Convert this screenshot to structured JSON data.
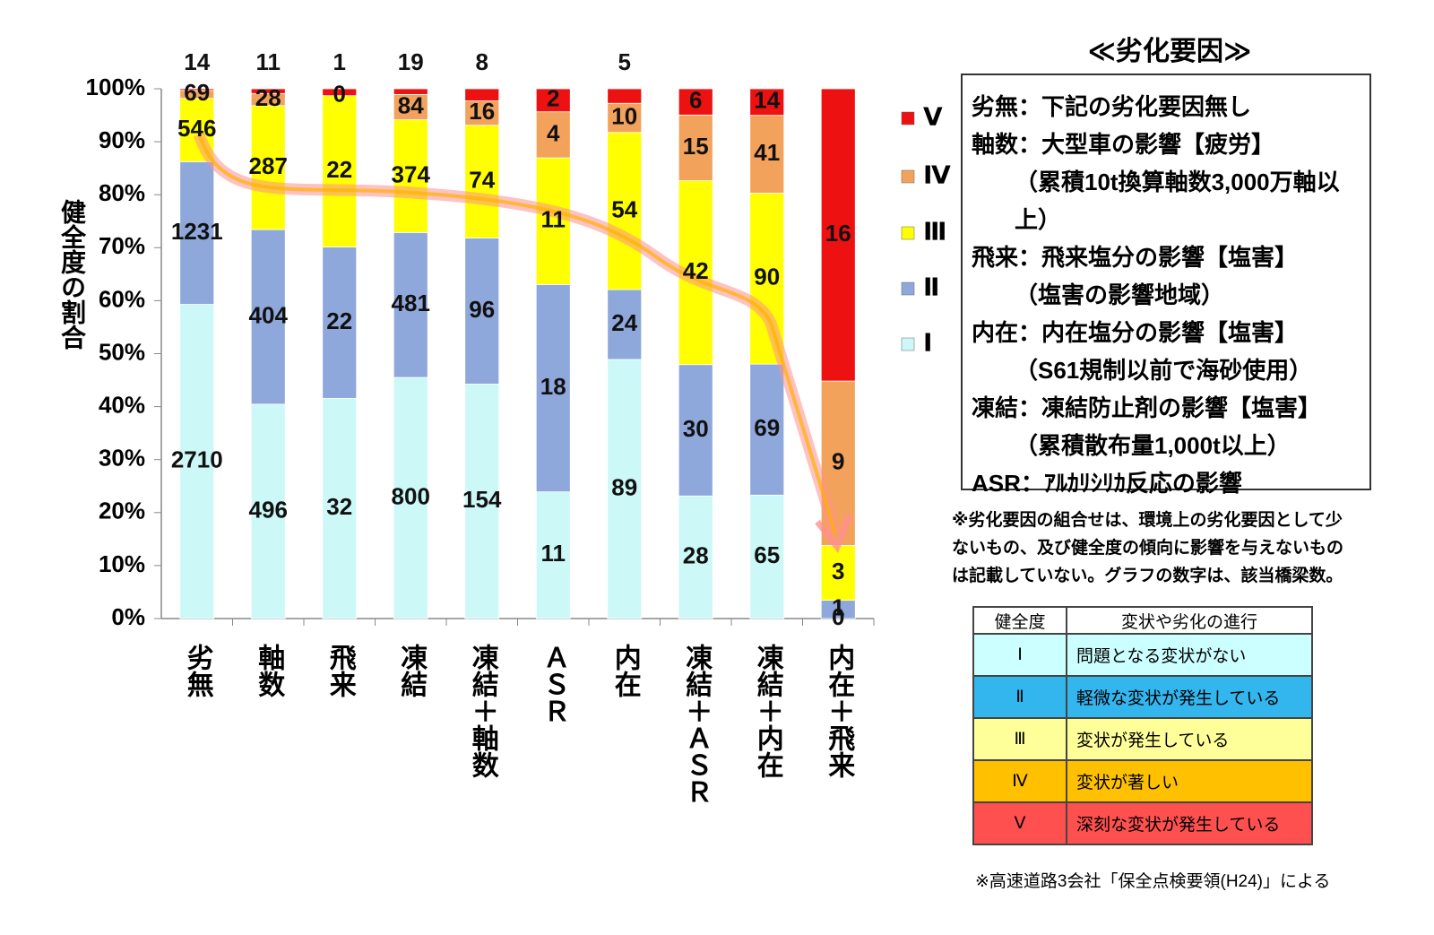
{
  "chart_data": {
    "type": "bar",
    "stacking": "percent",
    "y_label": "健全度の割合",
    "categories": [
      "劣無",
      "軸数",
      "飛来",
      "凍結",
      "凍結＋軸数",
      "ＡＳＲ",
      "内在",
      "凍結＋ＡＳＲ",
      "凍結＋内在",
      "内在＋飛来"
    ],
    "series": [
      {
        "name": "Ⅰ",
        "color": "#ccf8f8",
        "values": [
          2710,
          496,
          32,
          800,
          154,
          11,
          89,
          28,
          65,
          0
        ]
      },
      {
        "name": "Ⅱ",
        "color": "#8fa8dc",
        "values": [
          1231,
          404,
          22,
          481,
          96,
          18,
          24,
          30,
          69,
          1
        ]
      },
      {
        "name": "Ⅲ",
        "color": "#ffff00",
        "values": [
          546,
          287,
          22,
          374,
          74,
          11,
          54,
          42,
          90,
          3
        ]
      },
      {
        "name": "Ⅳ",
        "color": "#f3a25c",
        "values": [
          69,
          28,
          0,
          84,
          16,
          4,
          10,
          15,
          41,
          9
        ]
      },
      {
        "name": "Ⅴ",
        "color": "#ee1111",
        "values": [
          14,
          11,
          1,
          19,
          8,
          2,
          5,
          6,
          14,
          16
        ]
      }
    ],
    "ylim": [
      0,
      100
    ],
    "yticks": [
      {
        "value": 0,
        "label": "0%"
      },
      {
        "value": 10,
        "label": "10%"
      },
      {
        "value": 20,
        "label": "20%"
      },
      {
        "value": 30,
        "label": "30%"
      },
      {
        "value": 40,
        "label": "40%"
      },
      {
        "value": 50,
        "label": "50%"
      },
      {
        "value": 60,
        "label": "60%"
      },
      {
        "value": 70,
        "label": "70%"
      },
      {
        "value": 80,
        "label": "80%"
      },
      {
        "value": 90,
        "label": "90%"
      },
      {
        "value": 100,
        "label": "100%"
      }
    ],
    "grid": false,
    "legend": "right"
  },
  "panel": {
    "title": "≪劣化要因≫",
    "factors": [
      {
        "line": "劣無：下記の劣化要因無し"
      },
      {
        "line": "軸数：大型車の影響【疲労】",
        "detail": "（累積10t換算軸数3,000万軸以上）"
      },
      {
        "line": "飛来：飛来塩分の影響【塩害】",
        "detail": "（塩害の影響地域）"
      },
      {
        "line": "内在：内在塩分の影響【塩害】",
        "detail": "（S61規制以前で海砂使用）"
      },
      {
        "line": "凍結：凍結防止剤の影響【塩害】",
        "detail": "（累積散布量1,000t以上）"
      },
      {
        "line": "ASR：ｱﾙｶﾘｼﾘｶ反応の影響"
      }
    ],
    "note": [
      "※劣化要因の組合せは、環境上の劣化要因として少",
      "ないもの、及び健全度の傾向に影響を与えないもの",
      "は記載していない。グラフの数字は、該当橋梁数。"
    ],
    "table": {
      "header": [
        "健全度",
        "変状や劣化の進行"
      ],
      "rows": [
        [
          "Ⅰ",
          "問題となる変状がない"
        ],
        [
          "Ⅱ",
          "軽微な変状が発生している"
        ],
        [
          "Ⅲ",
          "変状が発生している"
        ],
        [
          "Ⅳ",
          "変状が著しい"
        ],
        [
          "Ⅴ",
          "深刻な変状が発生している"
        ]
      ]
    },
    "footnote": "※高速道路3会社「保全点検要領(H24)」による"
  }
}
